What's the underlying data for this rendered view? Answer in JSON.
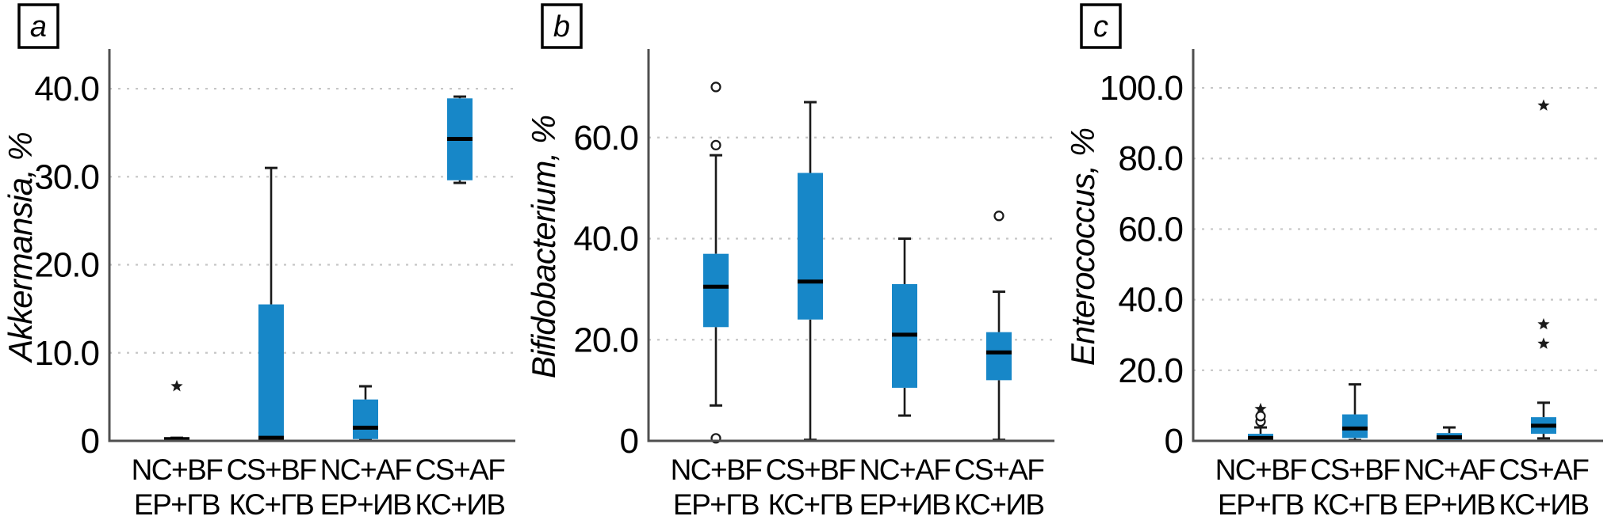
{
  "colors": {
    "box_fill": "#1787c8",
    "median": "#000000",
    "whisker": "#1a1a1a",
    "axis": "#4f4f4f",
    "grid": "#c6c6c6",
    "outlier": "#1a1a1a",
    "text": "#000000",
    "panel_label_border": "#000000"
  },
  "chart_data": [
    {
      "type": "box",
      "panel_label": "a",
      "ylabel": "Akkermansia, %",
      "xlabel": "",
      "ylim": [
        0,
        44.5
      ],
      "grid": "horizontal-dotted",
      "legend": "none",
      "yticks": [
        {
          "value": 0,
          "label": "0"
        },
        {
          "value": 10,
          "label": "10.0"
        },
        {
          "value": 20,
          "label": "20.0"
        },
        {
          "value": 30,
          "label": "30.0"
        },
        {
          "value": 40,
          "label": "40.0"
        }
      ],
      "categories": [
        {
          "line1": "NC+BF",
          "line2": "ЕР+ГВ"
        },
        {
          "line1": "CS+BF",
          "line2": "КС+ГВ"
        },
        {
          "line1": "NC+AF",
          "line2": "ЕР+ИВ"
        },
        {
          "line1": "CS+AF",
          "line2": "КС+ИВ"
        }
      ],
      "boxes": [
        {
          "whisker_low": 0,
          "q1": 0,
          "median": 0.2,
          "q3": 0.35,
          "whisker_high": 0.35,
          "outliers": [
            {
              "type": "star",
              "value": 6.2
            }
          ]
        },
        {
          "whisker_low": 0,
          "q1": 0,
          "median": 0.35,
          "q3": 15.5,
          "whisker_high": 31,
          "outliers": []
        },
        {
          "whisker_low": 0.1,
          "q1": 0.2,
          "median": 1.5,
          "q3": 4.7,
          "whisker_high": 6.2,
          "outliers": []
        },
        {
          "whisker_low": 29.3,
          "q1": 29.6,
          "median": 34.3,
          "q3": 38.9,
          "whisker_high": 39.1,
          "outliers": []
        }
      ]
    },
    {
      "type": "box",
      "panel_label": "b",
      "ylabel": "Bifidobacterium, %",
      "xlabel": "",
      "ylim": [
        0,
        77.5
      ],
      "grid": "horizontal-dotted",
      "legend": "none",
      "yticks": [
        {
          "value": 0,
          "label": "0"
        },
        {
          "value": 20,
          "label": "20.0"
        },
        {
          "value": 40,
          "label": "40.0"
        },
        {
          "value": 60,
          "label": "60.0"
        }
      ],
      "categories": [
        {
          "line1": "NC+BF",
          "line2": "ЕР+ГВ"
        },
        {
          "line1": "CS+BF",
          "line2": "КС+ГВ"
        },
        {
          "line1": "NC+AF",
          "line2": "ЕР+ИВ"
        },
        {
          "line1": "CS+AF",
          "line2": "КС+ИВ"
        }
      ],
      "boxes": [
        {
          "whisker_low": 7,
          "q1": 22.5,
          "median": 30.5,
          "q3": 37,
          "whisker_high": 56.5,
          "outliers": [
            {
              "type": "circle",
              "value": 0.5
            },
            {
              "type": "circle",
              "value": 58.5
            },
            {
              "type": "circle",
              "value": 70
            }
          ]
        },
        {
          "whisker_low": 0.2,
          "q1": 24,
          "median": 31.5,
          "q3": 53,
          "whisker_high": 67,
          "outliers": []
        },
        {
          "whisker_low": 5,
          "q1": 10.5,
          "median": 21,
          "q3": 31,
          "whisker_high": 40,
          "outliers": []
        },
        {
          "whisker_low": 0.2,
          "q1": 12,
          "median": 17.5,
          "q3": 21.5,
          "whisker_high": 29.5,
          "outliers": [
            {
              "type": "circle",
              "value": 44.5
            }
          ]
        }
      ]
    },
    {
      "type": "box",
      "panel_label": "c",
      "ylabel": "Enterococcus, %",
      "xlabel": "",
      "ylim": [
        0,
        111
      ],
      "grid": "horizontal-dotted",
      "legend": "none",
      "yticks": [
        {
          "value": 0,
          "label": "0"
        },
        {
          "value": 20,
          "label": "20.0"
        },
        {
          "value": 40,
          "label": "40.0"
        },
        {
          "value": 60,
          "label": "60.0"
        },
        {
          "value": 80,
          "label": "80.0"
        },
        {
          "value": 100,
          "label": "100.0"
        }
      ],
      "categories": [
        {
          "line1": "NC+BF",
          "line2": "ЕР+ГВ"
        },
        {
          "line1": "CS+BF",
          "line2": "КС+ГВ"
        },
        {
          "line1": "NC+AF",
          "line2": "ЕР+ИВ"
        },
        {
          "line1": "CS+AF",
          "line2": "КС+ИВ"
        }
      ],
      "boxes": [
        {
          "whisker_low": 0,
          "q1": 0,
          "median": 0.8,
          "q3": 2.0,
          "whisker_high": 3.8,
          "outliers": [
            {
              "type": "circle",
              "value": 5.5
            },
            {
              "type": "circle",
              "value": 7.0
            },
            {
              "type": "star",
              "value": 9.0
            }
          ]
        },
        {
          "whisker_low": 0.2,
          "q1": 0.8,
          "median": 3.5,
          "q3": 7.5,
          "whisker_high": 16,
          "outliers": []
        },
        {
          "whisker_low": 0.1,
          "q1": 0.3,
          "median": 1.0,
          "q3": 2.2,
          "whisker_high": 3.8,
          "outliers": []
        },
        {
          "whisker_low": 0.7,
          "q1": 2.0,
          "median": 4.3,
          "q3": 6.7,
          "whisker_high": 10.8,
          "outliers": [
            {
              "type": "star",
              "value": 27.5
            },
            {
              "type": "star",
              "value": 33
            },
            {
              "type": "star",
              "value": 95
            }
          ]
        }
      ]
    }
  ]
}
